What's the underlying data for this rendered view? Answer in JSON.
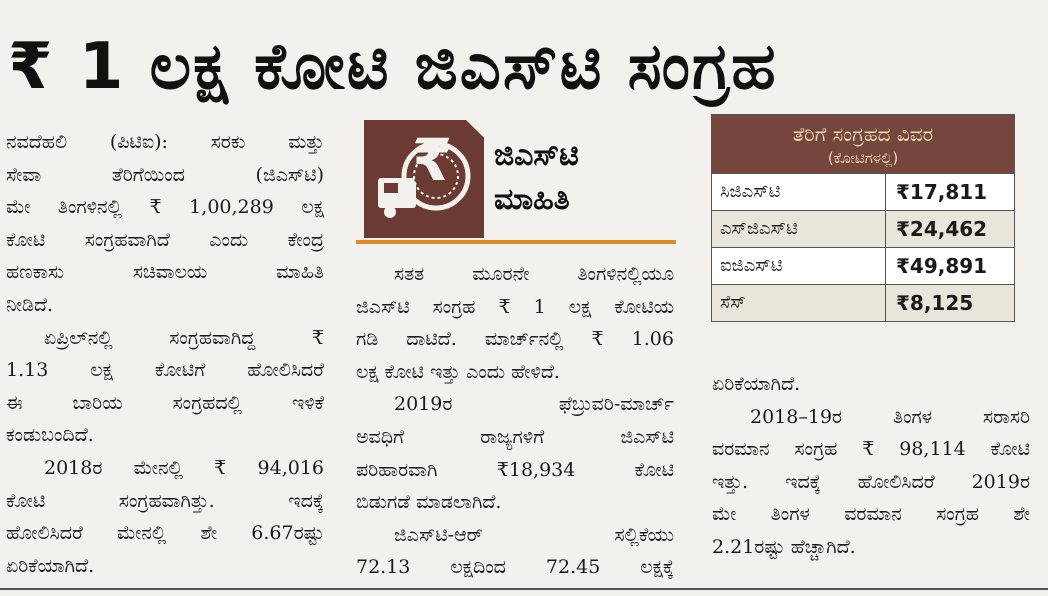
{
  "headline": "₹ 1 ಲಕ್ಷ ಕೋಟಿ ಜಿಎಸ್‌ಟಿ ಸಂಗ್ರಹ",
  "logo": {
    "title_line1": "ಜಿಎಸ್‌ಟಿ",
    "title_line2": "ಮಾಹಿತಿ",
    "box_color": "#6b3b33",
    "accent_color": "#e08a2a",
    "icon": "truck-rupee-icon"
  },
  "table": {
    "title": "ತೆರಿಗೆ ಸಂಗ್ರಹದ ವಿವರ",
    "subtitle": "(ಕೋಟಿಗಳಲ್ಲಿ)",
    "header_color": "#74463c",
    "rows": [
      {
        "label": "ಸಿಜಿಎಸ್‌ಟಿ",
        "value": "₹17,811"
      },
      {
        "label": "ಎಸ್‌ಜಿಎಸ್‌ಟಿ",
        "value": "₹24,462"
      },
      {
        "label": "ಐಜಿಎಸ್‌ಟಿ",
        "value": "₹49,891"
      },
      {
        "label": "ಸೆಸ್",
        "value": "₹8,125"
      }
    ]
  },
  "columns": [
    [
      {
        "text": "ನವದೆಹಲಿ (ಪಿಟಿಐ): ಸರಕು ಮತ್ತು",
        "j": true
      },
      {
        "text": "ಸೇವಾ ತೆರಿಗೆಯಿಂದ (ಜಿಎಸ್‌ಟಿ)",
        "j": true
      },
      {
        "text": "ಮೇ ತಿಂಗಳಿನಲ್ಲಿ ₹ 1,00,289 ಲಕ್ಷ",
        "j": true
      },
      {
        "text": "ಕೋಟಿ ಸಂಗ್ರಹವಾಗಿದೆ ಎಂದು ಕೇಂದ್ರ",
        "j": true
      },
      {
        "text": "ಹಣಕಾಸು ಸಚಿವಾಲಯ ಮಾಹಿತಿ",
        "j": true
      },
      {
        "text": "ನೀಡಿದೆ."
      },
      {
        "text": "ಏಪ್ರಿಲ್‌ನಲ್ಲಿ ಸಂಗ್ರಹವಾಗಿದ್ದ ₹",
        "j": true,
        "ind": true
      },
      {
        "text": "1.13 ಲಕ್ಷ ಕೋಟಿಗೆ ಹೋಲಿಸಿದರೆ",
        "j": true
      },
      {
        "text": "ಈ ಬಾರಿಯ ಸಂಗ್ರಹದಲ್ಲಿ ಇಳಿಕೆ",
        "j": true
      },
      {
        "text": "ಕಂಡುಬಂದಿದೆ."
      },
      {
        "text": "2018ರ ಮೇನಲ್ಲಿ ₹ 94,016",
        "j": true,
        "ind": true
      },
      {
        "text": "ಕೋಟಿ ಸಂಗ್ರಹವಾಗಿತ್ತು. ಇದಕ್ಕೆ",
        "j": true
      },
      {
        "text": "ಹೋಲಿಸಿದರೆ ಮೇನಲ್ಲಿ ಶೇ 6.67ರಷ್ಟು",
        "j": true
      },
      {
        "text": "ಏರಿಕೆಯಾಗಿದೆ."
      }
    ],
    [
      {
        "text": "ಸತತ ಮೂರನೇ ತಿಂಗಳಿನಲ್ಲಿಯೂ",
        "j": true,
        "ind": true
      },
      {
        "text": "ಜಿಎಸ್‌ಟಿ ಸಂಗ್ರಹ ₹ 1 ಲಕ್ಷ ಕೋಟಿಯ",
        "j": true
      },
      {
        "text": "ಗಡಿ ದಾಟಿದೆ. ಮಾರ್ಚ್‌ನಲ್ಲಿ ₹ 1.06",
        "j": true
      },
      {
        "text": "ಲಕ್ಷ ಕೋಟಿ ಇತ್ತು ಎಂದು ಹೇಳಿದೆ."
      },
      {
        "text": "2019ರ ಫೆಬ್ರುವರಿ-ಮಾರ್ಚ್",
        "j": true,
        "ind": true
      },
      {
        "text": "ಅವಧಿಗೆ ರಾಜ್ಯಗಳಿಗೆ ಜಿಎಸ್‌ಟಿ",
        "j": true
      },
      {
        "text": "ಪರಿಹಾರವಾಗಿ ₹18,934 ಕೋಟಿ",
        "j": true
      },
      {
        "text": "ಬಿಡುಗಡೆ ಮಾಡಲಾಗಿದೆ."
      },
      {
        "text": "ಜಿಎಸ್‌ಟಿ-ಆರ್ ಸಲ್ಲಿಕೆಯು",
        "j": true,
        "ind": true
      },
      {
        "text": "72.13 ಲಕ್ಷದಿಂದ 72.45 ಲಕ್ಷಕ್ಕೆ",
        "j": true
      }
    ],
    [
      {
        "text": "ಏರಿಕೆಯಾಗಿದೆ."
      },
      {
        "text": "2018–19ರ ತಿಂಗಳ ಸರಾಸರಿ",
        "j": true,
        "ind": true
      },
      {
        "text": "ವರಮಾನ ಸಂಗ್ರಹ ₹ 98,114 ಕೋಟಿ",
        "j": true
      },
      {
        "text": "ಇತ್ತು. ಇದಕ್ಕೆ ಹೋಲಿಸಿದರೆ 2019ರ",
        "j": true
      },
      {
        "text": "ಮೇ ತಿಂಗಳ ವರಮಾನ ಸಂಗ್ರಹ ಶೇ",
        "j": true
      },
      {
        "text": "2.21ರಷ್ಟು ಹೆಚ್ಚಾಗಿದೆ."
      }
    ]
  ]
}
